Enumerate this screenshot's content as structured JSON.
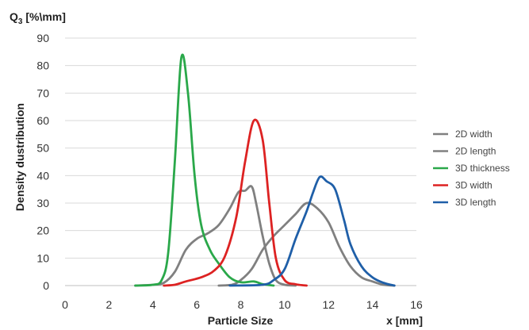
{
  "chart_data": {
    "type": "line",
    "title": "",
    "y_unit_label": "Q3 [%\\mm]",
    "ylabel": "Density dustribution",
    "xlabel": "Particle Size",
    "x_unit_label": "x [mm]",
    "xlim": [
      0,
      16
    ],
    "ylim": [
      0,
      90
    ],
    "x_ticks": [
      0,
      2,
      4,
      6,
      8,
      10,
      12,
      14,
      16
    ],
    "y_ticks": [
      0,
      10,
      20,
      30,
      40,
      50,
      60,
      70,
      80,
      90
    ],
    "grid": "horizontal",
    "legend_position": "right",
    "series": [
      {
        "name": "2D width",
        "color": "#808080",
        "points": [
          [
            3.2,
            0
          ],
          [
            4.0,
            0.3
          ],
          [
            4.5,
            1
          ],
          [
            5.0,
            5
          ],
          [
            5.5,
            13
          ],
          [
            6.0,
            17
          ],
          [
            6.5,
            19
          ],
          [
            7.0,
            22
          ],
          [
            7.5,
            28
          ],
          [
            7.9,
            34
          ],
          [
            8.2,
            34.5
          ],
          [
            8.5,
            36
          ],
          [
            8.7,
            30
          ],
          [
            9.0,
            18
          ],
          [
            9.3,
            8
          ],
          [
            9.6,
            2
          ],
          [
            10.0,
            0.3
          ],
          [
            10.5,
            0
          ]
        ]
      },
      {
        "name": "2D length",
        "color": "#808080",
        "points": [
          [
            7.0,
            0
          ],
          [
            7.6,
            0.3
          ],
          [
            8.0,
            2
          ],
          [
            8.5,
            6
          ],
          [
            9.0,
            13
          ],
          [
            9.5,
            18
          ],
          [
            10.0,
            22
          ],
          [
            10.5,
            26
          ],
          [
            11.0,
            30
          ],
          [
            11.5,
            28
          ],
          [
            12.0,
            23
          ],
          [
            12.5,
            14
          ],
          [
            13.0,
            7
          ],
          [
            13.5,
            3
          ],
          [
            14.0,
            1.5
          ],
          [
            14.5,
            0.3
          ],
          [
            15.0,
            0
          ]
        ]
      },
      {
        "name": "3D thickness",
        "color": "#2aa84a",
        "points": [
          [
            3.2,
            0
          ],
          [
            4.0,
            0.3
          ],
          [
            4.4,
            2
          ],
          [
            4.7,
            12
          ],
          [
            5.0,
            45
          ],
          [
            5.3,
            83
          ],
          [
            5.6,
            70
          ],
          [
            5.9,
            40
          ],
          [
            6.2,
            22
          ],
          [
            6.6,
            13
          ],
          [
            7.0,
            8
          ],
          [
            7.5,
            3
          ],
          [
            8.0,
            1.2
          ],
          [
            8.6,
            1.5
          ],
          [
            9.0,
            0.5
          ],
          [
            9.5,
            0
          ]
        ]
      },
      {
        "name": "3D width",
        "color": "#dd2222",
        "points": [
          [
            4.5,
            0
          ],
          [
            5.0,
            0.3
          ],
          [
            5.5,
            1.5
          ],
          [
            6.2,
            3
          ],
          [
            6.8,
            5.5
          ],
          [
            7.3,
            11
          ],
          [
            7.8,
            25
          ],
          [
            8.2,
            45
          ],
          [
            8.6,
            60
          ],
          [
            9.0,
            53
          ],
          [
            9.3,
            30
          ],
          [
            9.6,
            10
          ],
          [
            10.0,
            2
          ],
          [
            10.5,
            0.5
          ],
          [
            11.0,
            0
          ]
        ]
      },
      {
        "name": "3D length",
        "color": "#1f5fa8",
        "points": [
          [
            7.5,
            0
          ],
          [
            9.0,
            0.3
          ],
          [
            9.5,
            2
          ],
          [
            10.0,
            6
          ],
          [
            10.5,
            17
          ],
          [
            11.0,
            27
          ],
          [
            11.3,
            34
          ],
          [
            11.6,
            39.5
          ],
          [
            11.9,
            38
          ],
          [
            12.3,
            35
          ],
          [
            12.7,
            24
          ],
          [
            13.0,
            15
          ],
          [
            13.5,
            7
          ],
          [
            14.0,
            3
          ],
          [
            14.5,
            1
          ],
          [
            15.0,
            0
          ]
        ]
      }
    ]
  }
}
